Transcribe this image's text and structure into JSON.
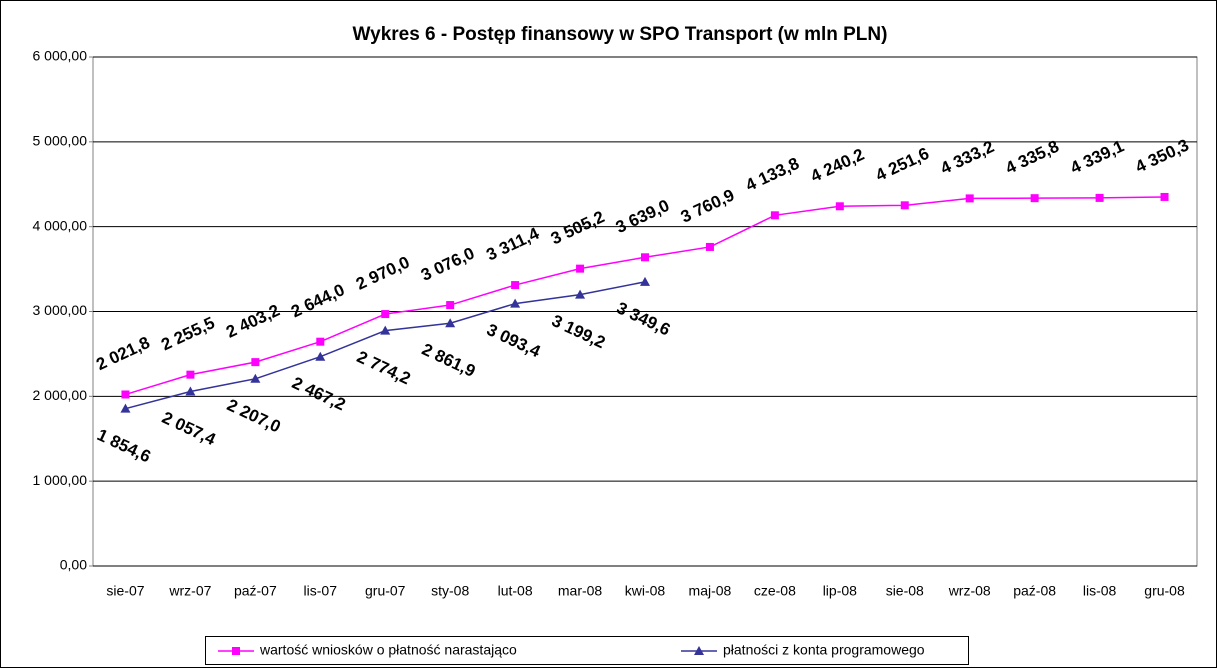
{
  "chart_data": {
    "type": "line",
    "title": "Wykres 6 - Postęp finansowy w SPO Transport (w mln PLN)",
    "categories": [
      "sie-07",
      "wrz-07",
      "paź-07",
      "lis-07",
      "gru-07",
      "sty-08",
      "lut-08",
      "mar-08",
      "kwi-08",
      "maj-08",
      "cze-08",
      "lip-08",
      "sie-08",
      "wrz-08",
      "paź-08",
      "lis-08",
      "gru-08"
    ],
    "series": [
      {
        "name": "wartość wniosków o płatność narastająco",
        "color": "#ff00ff",
        "marker": "square",
        "values": [
          2021.8,
          2255.5,
          2403.2,
          2644.0,
          2970.0,
          3076.0,
          3311.4,
          3505.2,
          3639.0,
          3760.9,
          4133.8,
          4240.2,
          4251.6,
          4333.2,
          4335.8,
          4339.1,
          4350.3
        ],
        "value_labels": [
          "2 021,8",
          "2 255,5",
          "2 403,2",
          "2 644,0",
          "2 970,0",
          "3 076,0",
          "3 311,4",
          "3 505,2",
          "3 639,0",
          "3 760,9",
          "4 133,8",
          "4 240,2",
          "4 251,6",
          "4 333,2",
          "4 335,8",
          "4 339,1",
          "4 350,3"
        ]
      },
      {
        "name": "płatności z konta programowego",
        "color": "#333399",
        "marker": "triangle",
        "values": [
          1854.6,
          2057.4,
          2207.0,
          2467.2,
          2774.2,
          2861.9,
          3093.4,
          3199.2,
          3349.6,
          null,
          null,
          null,
          null,
          null,
          null,
          null,
          null
        ],
        "value_labels": [
          "1 854,6",
          "2 057,4",
          "2 207,0",
          "2 467,2",
          "2 774,2",
          "2 861,9",
          "3 093,4",
          "3 199,2",
          "3 349,6",
          null,
          null,
          null,
          null,
          null,
          null,
          null,
          null
        ]
      }
    ],
    "ylim": [
      0,
      6000
    ],
    "yticks": [
      {
        "value": 0,
        "label": "0,00"
      },
      {
        "value": 1000,
        "label": "1 000,00"
      },
      {
        "value": 2000,
        "label": "2 000,00"
      },
      {
        "value": 3000,
        "label": "3 000,00"
      },
      {
        "value": 4000,
        "label": "4 000,00"
      },
      {
        "value": 5000,
        "label": "5 000,00"
      },
      {
        "value": 6000,
        "label": "6 000,00"
      }
    ],
    "grid": true,
    "legend": "bottom"
  }
}
